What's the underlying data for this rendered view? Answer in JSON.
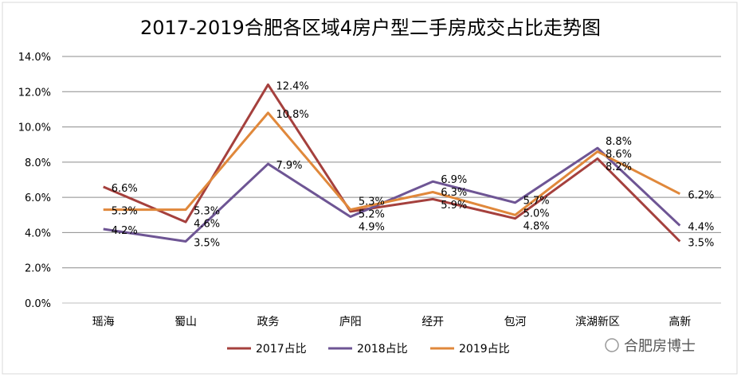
{
  "chart_data": {
    "type": "line",
    "title": "2017-2019合肥各区域4房户型二手房成交占比走势图",
    "categories": [
      "瑶海",
      "蜀山",
      "政务",
      "庐阳",
      "经开",
      "包河",
      "滨湖新区",
      "高新"
    ],
    "series": [
      {
        "name": "2017占比",
        "color": "#A5403D",
        "values": [
          6.6,
          4.6,
          12.4,
          5.2,
          5.9,
          4.8,
          8.2,
          3.5
        ]
      },
      {
        "name": "2018占比",
        "color": "#6E5594",
        "values": [
          4.2,
          3.5,
          7.9,
          4.9,
          6.9,
          5.7,
          8.8,
          4.4
        ]
      },
      {
        "name": "2019占比",
        "color": "#E0883B",
        "values": [
          5.3,
          5.3,
          10.8,
          5.3,
          6.3,
          5.0,
          8.6,
          6.2
        ]
      }
    ],
    "ylim": [
      0,
      14
    ],
    "yticks": [
      "0.0%",
      "2.0%",
      "4.0%",
      "6.0%",
      "8.0%",
      "10.0%",
      "12.0%",
      "14.0%"
    ],
    "grid": true,
    "legend": "bottom"
  },
  "watermark": "合肥房博士"
}
